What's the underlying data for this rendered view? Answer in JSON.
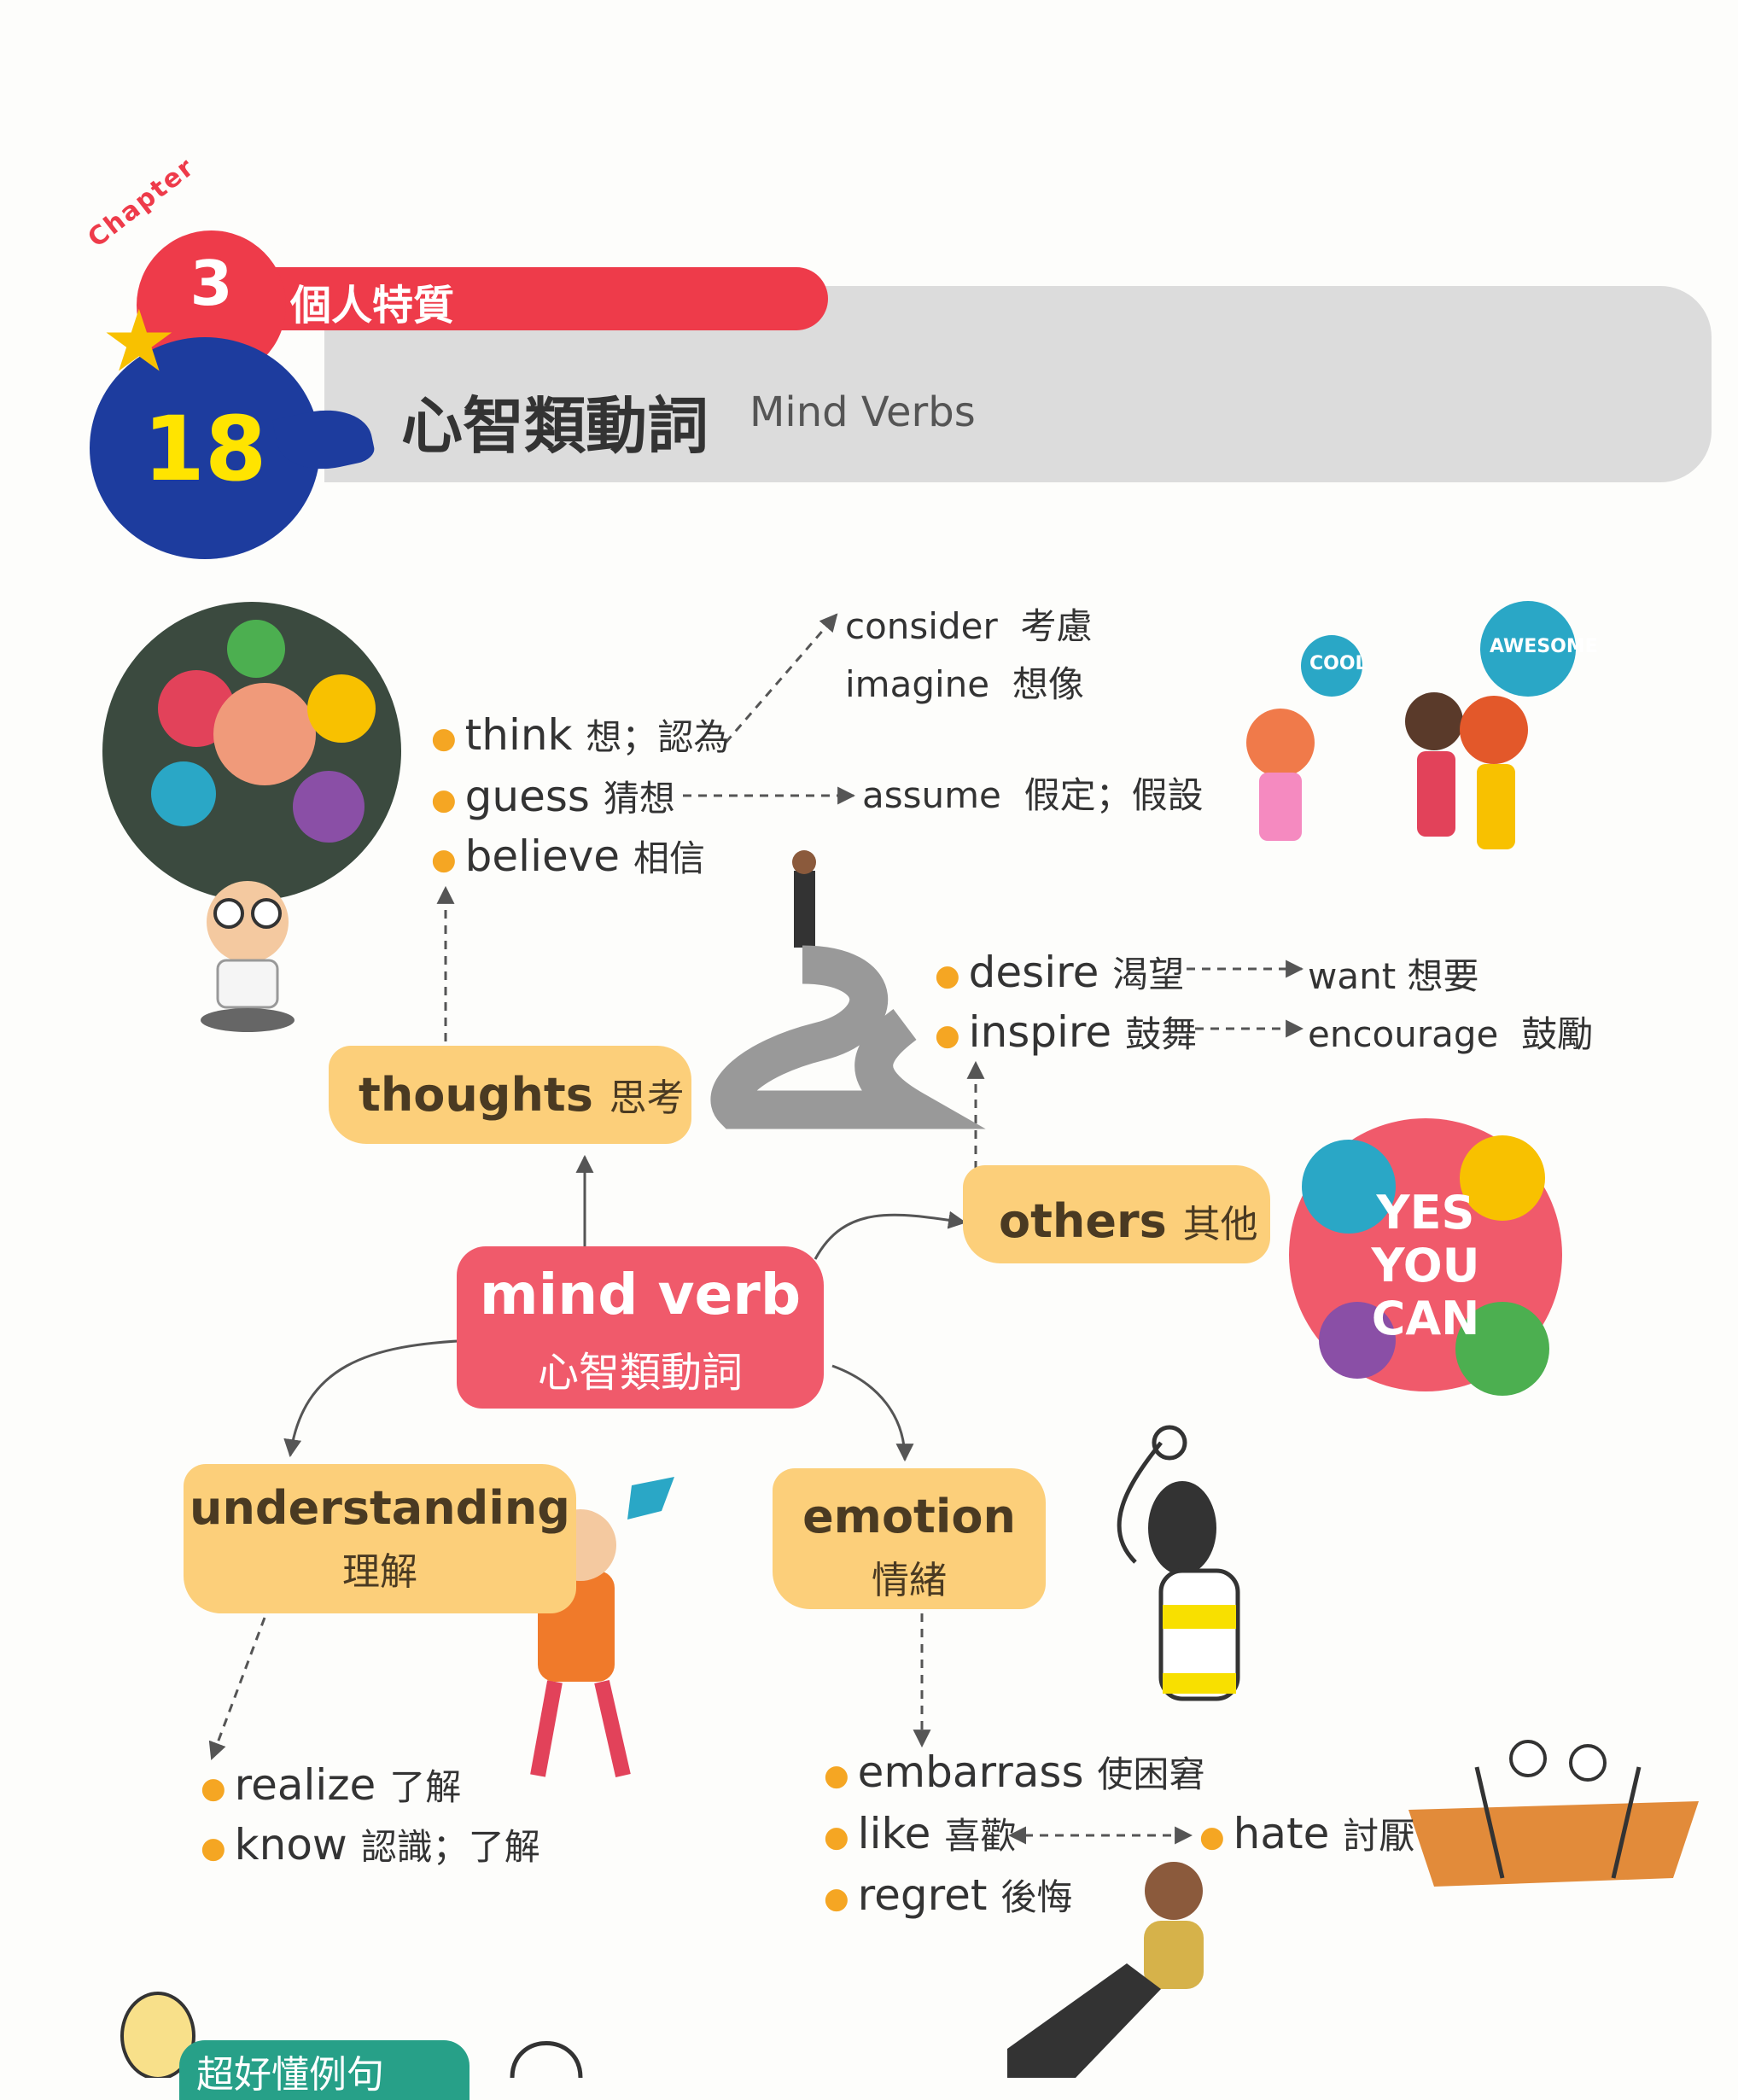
{
  "header": {
    "chapter_word": "Chapter",
    "chapter_number": "3",
    "chapter_title": "個人特質",
    "lesson_number": "18",
    "lesson_title": "心智類動詞",
    "lesson_subtitle": "Mind Verbs"
  },
  "center": {
    "en": "mind verb",
    "zh": "心智類動詞"
  },
  "thoughts": {
    "label_en": "thoughts",
    "label_zh": "思考",
    "words": [
      {
        "en": "think",
        "zh": "想；認為"
      },
      {
        "en": "guess",
        "zh": "猜想"
      },
      {
        "en": "believe",
        "zh": "相信"
      }
    ],
    "think_links": [
      {
        "en": "consider",
        "zh": "考慮"
      },
      {
        "en": "imagine",
        "zh": "想像"
      }
    ],
    "guess_link": {
      "en": "assume",
      "zh": "假定；假設"
    }
  },
  "others": {
    "label_en": "others",
    "label_zh": "其他",
    "words": [
      {
        "en": "desire",
        "zh": "渴望",
        "link_en": "want",
        "link_zh": "想要"
      },
      {
        "en": "inspire",
        "zh": "鼓舞",
        "link_en": "encourage",
        "link_zh": "鼓勵"
      }
    ]
  },
  "understanding": {
    "label_en": "understanding",
    "label_zh": "理解",
    "words": [
      {
        "en": "realize",
        "zh": "了解"
      },
      {
        "en": "know",
        "zh": "認識；了解"
      }
    ]
  },
  "emotion": {
    "label_en": "emotion",
    "label_zh": "情緒",
    "words": [
      {
        "en": "embarrass",
        "zh": "使困窘"
      },
      {
        "en": "like",
        "zh": "喜歡"
      },
      {
        "en": "regret",
        "zh": "後悔"
      }
    ],
    "like_link": {
      "en": "hate",
      "zh": "討厭"
    }
  },
  "illustrations": {
    "bubble_left": "COOL",
    "bubble_right": "AWESOME",
    "poster_lines": [
      "YES",
      "YOU",
      "CAN"
    ]
  },
  "footer": {
    "tip_label": "超好懂例句"
  },
  "colors": {
    "red": "#ee3b4a",
    "blue": "#1d3c9e",
    "yellow": "#ffe400",
    "node_fill": "#fccf7a",
    "center_fill": "#f05a6b",
    "bullet": "#f5a623"
  }
}
